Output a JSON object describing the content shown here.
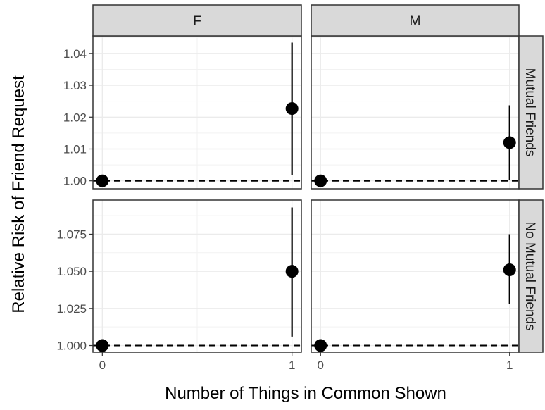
{
  "chart_data": {
    "type": "scatter",
    "subtype": "point-range facet grid",
    "xlabel": "Number of Things in Common Shown",
    "ylabel": "Relative Risk of Friend Request",
    "x_ticks": [
      0,
      1
    ],
    "columns": [
      "F",
      "M"
    ],
    "rows": [
      "Mutual Friends",
      "No Mutual Friends"
    ],
    "reference_line": {
      "y": 1.0,
      "style": "dashed"
    },
    "grid": true,
    "panels": [
      {
        "column": "F",
        "row": "Mutual Friends",
        "ylim": [
          0.9975,
          1.0455
        ],
        "y_ticks": [
          "1.00",
          "1.01",
          "1.02",
          "1.03",
          "1.04"
        ],
        "points": [
          {
            "x": 0,
            "y": 1.0
          },
          {
            "x": 1,
            "y": 1.0227,
            "ymin": 1.0017,
            "ymax": 1.0434
          }
        ]
      },
      {
        "column": "M",
        "row": "Mutual Friends",
        "ylim": [
          0.9975,
          1.0455
        ],
        "y_ticks": [
          "1.00",
          "1.01",
          "1.02",
          "1.03",
          "1.04"
        ],
        "points": [
          {
            "x": 0,
            "y": 1.0
          },
          {
            "x": 1,
            "y": 1.012,
            "ymin": 1.0002,
            "ymax": 1.0237
          }
        ]
      },
      {
        "column": "F",
        "row": "No Mutual Friends",
        "ylim": [
          0.9955,
          1.098
        ],
        "y_ticks": [
          "1.000",
          "1.025",
          "1.050",
          "1.075"
        ],
        "points": [
          {
            "x": 0,
            "y": 1.0
          },
          {
            "x": 1,
            "y": 1.05,
            "ymin": 1.006,
            "ymax": 1.093
          }
        ]
      },
      {
        "column": "M",
        "row": "No Mutual Friends",
        "ylim": [
          0.9955,
          1.098
        ],
        "y_ticks": [
          "1.000",
          "1.025",
          "1.050",
          "1.075"
        ],
        "points": [
          {
            "x": 0,
            "y": 1.0
          },
          {
            "x": 1,
            "y": 1.051,
            "ymin": 1.028,
            "ymax": 1.075
          }
        ]
      }
    ]
  }
}
